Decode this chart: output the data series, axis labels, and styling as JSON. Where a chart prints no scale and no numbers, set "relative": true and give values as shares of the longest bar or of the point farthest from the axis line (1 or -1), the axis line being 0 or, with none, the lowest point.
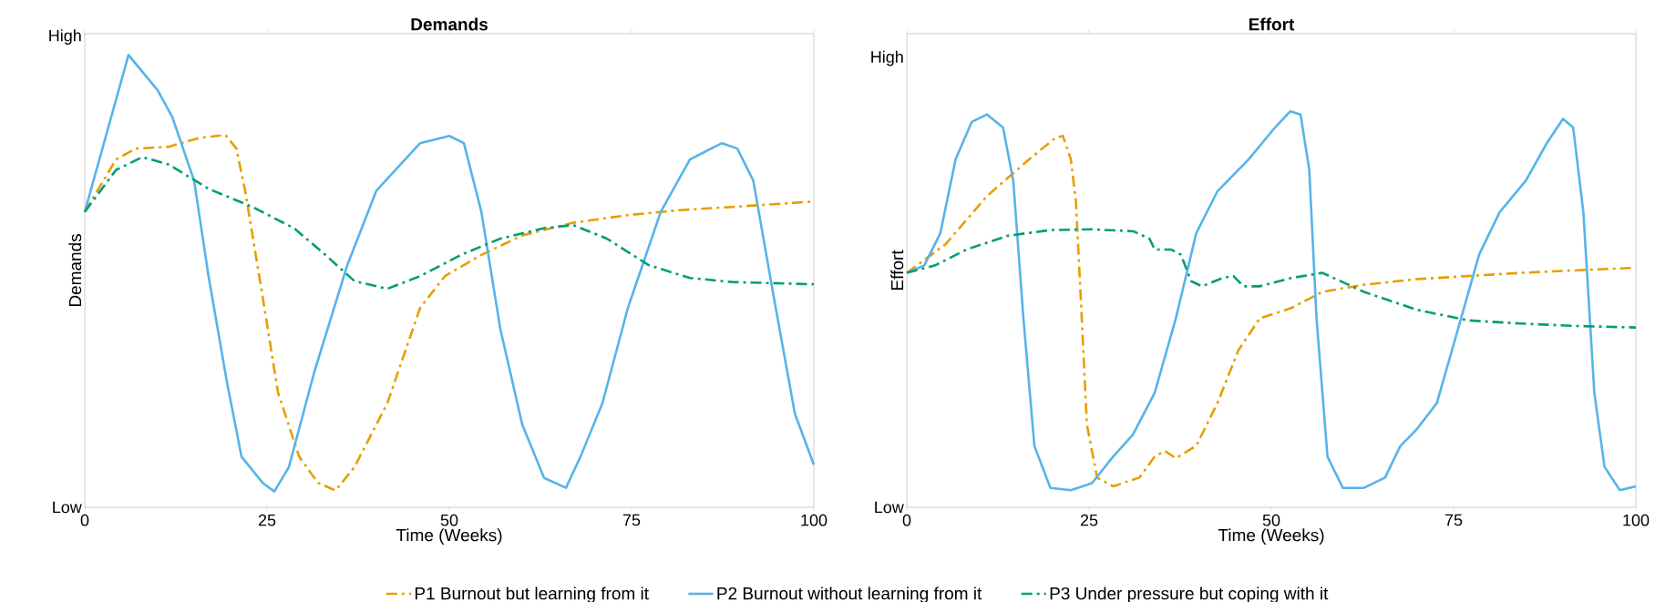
{
  "chart_data": [
    {
      "type": "line",
      "title": "Demands",
      "xlabel": "Time (Weeks)",
      "ylabel": "Demands",
      "xlim": [
        0,
        100
      ],
      "xticks": [
        0,
        25,
        50,
        75,
        100
      ],
      "relative": true,
      "annotations": [
        "Low",
        "High"
      ],
      "legend": "bottom",
      "grid": false,
      "series": [
        {
          "name": "P1  Burnout but learning from it",
          "color": "#e69f00",
          "line_style": "dashdot",
          "x": [
            0,
            4.3,
            7,
            11.5,
            15.8,
            19.3,
            20.8,
            22,
            24.4,
            26.5,
            29.4,
            32,
            34.4,
            37,
            41.5,
            46,
            49.4,
            54.4,
            60,
            67,
            74.5,
            81.7,
            88.8,
            100
          ],
          "values": [
            0.653,
            0.769,
            0.793,
            0.797,
            0.817,
            0.823,
            0.793,
            0.7,
            0.465,
            0.254,
            0.112,
            0.054,
            0.037,
            0.089,
            0.23,
            0.441,
            0.511,
            0.558,
            0.601,
            0.629,
            0.646,
            0.657,
            0.664,
            0.676
          ]
        },
        {
          "name": "P2  Burnout without learning from it",
          "color": "#56b4e9",
          "line_style": "solid",
          "x": [
            0,
            6,
            10,
            12,
            15,
            17,
            19.5,
            21.5,
            24.4,
            26,
            28,
            31.5,
            36,
            40,
            46,
            50,
            52,
            54.4,
            57,
            60,
            63,
            66,
            68,
            71,
            74.5,
            79,
            83,
            87.4,
            89.5,
            91.7,
            94.5,
            97.4,
            100
          ],
          "values": [
            0.653,
            1,
            0.922,
            0.863,
            0.722,
            0.509,
            0.277,
            0.112,
            0.054,
            0.035,
            0.089,
            0.3,
            0.535,
            0.7,
            0.805,
            0.821,
            0.805,
            0.653,
            0.394,
            0.183,
            0.065,
            0.043,
            0.112,
            0.23,
            0.441,
            0.653,
            0.769,
            0.805,
            0.793,
            0.722,
            0.465,
            0.207,
            0.094
          ]
        },
        {
          "name": "P3  Under pressure but coping with it",
          "color": "#009e73",
          "line_style": "dashdot",
          "x": [
            0,
            4.3,
            7.9,
            11.5,
            17,
            23,
            28.7,
            33,
            37,
            41.5,
            46,
            51.6,
            57,
            63,
            67,
            71.6,
            77.4,
            83,
            88.8,
            100
          ],
          "values": [
            0.653,
            0.746,
            0.774,
            0.758,
            0.704,
            0.664,
            0.617,
            0.558,
            0.5,
            0.483,
            0.511,
            0.558,
            0.594,
            0.617,
            0.624,
            0.594,
            0.535,
            0.507,
            0.498,
            0.493
          ]
        }
      ]
    },
    {
      "type": "line",
      "title": "Effort",
      "xlabel": "Time (Weeks)",
      "ylabel": "Effort",
      "xlim": [
        0,
        100
      ],
      "xticks": [
        0,
        25,
        50,
        75,
        100
      ],
      "relative": true,
      "annotations": [
        "Low",
        "High"
      ],
      "grid": false,
      "series": [
        {
          "color": "#e69f00",
          "line_style": "dashdot",
          "x": [
            0,
            5.3,
            11,
            16.8,
            20.4,
            21.4,
            22.5,
            23.2,
            24,
            24.7,
            26.1,
            28.3,
            31.9,
            34,
            35.4,
            36.9,
            39.7,
            42.6,
            45.5,
            48.4,
            52.7,
            57,
            62.7,
            69.9,
            77,
            84.2,
            91.4,
            100
          ],
          "values": [
            0.592,
            0.664,
            0.786,
            0.879,
            0.933,
            0.938,
            0.879,
            0.772,
            0.477,
            0.209,
            0.075,
            0.053,
            0.075,
            0.128,
            0.142,
            0.124,
            0.155,
            0.263,
            0.397,
            0.477,
            0.503,
            0.544,
            0.562,
            0.576,
            0.584,
            0.592,
            0.598,
            0.605
          ]
        },
        {
          "color": "#56b4e9",
          "line_style": "solid",
          "x": [
            0,
            2.4,
            4.6,
            6.7,
            8.9,
            11,
            13.2,
            14.6,
            16,
            17.5,
            19.7,
            22.5,
            25.4,
            28.3,
            31,
            34,
            36.9,
            39.7,
            42.6,
            46.9,
            50.5,
            52.6,
            54,
            55.2,
            56.2,
            57.7,
            59.8,
            62.7,
            65.6,
            67.7,
            69.9,
            72.7,
            75.6,
            78.5,
            81.3,
            84.9,
            87.8,
            90,
            91.4,
            92.8,
            94.3,
            95.7,
            97.8,
            100
          ],
          "values": [
            0.592,
            0.611,
            0.692,
            0.879,
            0.973,
            0.992,
            0.959,
            0.825,
            0.477,
            0.155,
            0.049,
            0.043,
            0.061,
            0.128,
            0.183,
            0.289,
            0.477,
            0.692,
            0.798,
            0.879,
            0.959,
            1,
            0.992,
            0.853,
            0.477,
            0.128,
            0.049,
            0.049,
            0.075,
            0.155,
            0.196,
            0.263,
            0.45,
            0.638,
            0.745,
            0.825,
            0.92,
            0.981,
            0.959,
            0.745,
            0.289,
            0.102,
            0.043,
            0.053
          ]
        },
        {
          "color": "#009e73",
          "line_style": "dashdot",
          "x": [
            0,
            3.9,
            8.2,
            13.9,
            19.7,
            25.4,
            31.1,
            33.3,
            34,
            36.2,
            37.6,
            39,
            40.5,
            43.3,
            44.8,
            46.2,
            48.4,
            52.7,
            57,
            62.7,
            69.9,
            77,
            84.2,
            91.4,
            100
          ],
          "values": [
            0.592,
            0.611,
            0.651,
            0.686,
            0.7,
            0.702,
            0.697,
            0.678,
            0.651,
            0.651,
            0.638,
            0.571,
            0.558,
            0.579,
            0.584,
            0.558,
            0.558,
            0.579,
            0.592,
            0.544,
            0.499,
            0.472,
            0.464,
            0.458,
            0.454
          ]
        }
      ]
    }
  ]
}
